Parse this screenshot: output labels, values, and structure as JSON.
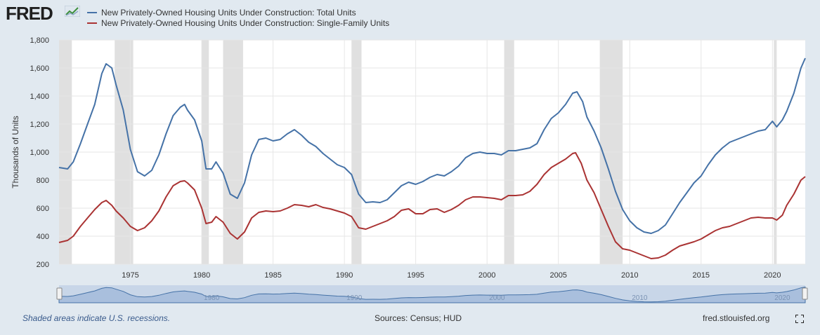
{
  "logo": {
    "text": "FRED",
    "icon": "fred-trend-logo-icon"
  },
  "footer": {
    "note": "Shaded areas indicate U.S. recessions.",
    "source": "Sources: Census; HUD",
    "site": "fred.stlouisfed.org",
    "fullscreen_icon": "fullscreen-icon"
  },
  "colors": {
    "total": "#4572a7",
    "single": "#aa3333",
    "recession": "#e0e0e0",
    "plot_bg": "#ffffff",
    "page_bg": "#e1e9f0",
    "navigator_fill": "#a9bfdd",
    "navigator_line": "#4572a7"
  },
  "chart_data": {
    "type": "line",
    "title": "",
    "xlabel": "",
    "ylabel": "Thousands of Units",
    "xlim": [
      1970.0,
      2022.3
    ],
    "ylim": [
      200,
      1800
    ],
    "yticks": [
      200,
      400,
      600,
      800,
      1000,
      1200,
      1400,
      1600,
      1800
    ],
    "ytick_labels": [
      "200",
      "400",
      "600",
      "800",
      "1,000",
      "1,200",
      "1,400",
      "1,600",
      "1,800"
    ],
    "xticks": [
      1975,
      1980,
      1985,
      1990,
      1995,
      2000,
      2005,
      2010,
      2015,
      2020
    ],
    "xtick_labels": [
      "1975",
      "1980",
      "1985",
      "1990",
      "1995",
      "2000",
      "2005",
      "2010",
      "2015",
      "2020"
    ],
    "grid": true,
    "legend_position": "top-left",
    "navigator_labels": [
      "1980",
      "1990",
      "2000",
      "2010",
      "2020"
    ],
    "recessions": [
      [
        1970.0,
        1970.9
      ],
      [
        1973.9,
        1975.2
      ],
      [
        1980.0,
        1980.5
      ],
      [
        1981.5,
        1982.9
      ],
      [
        1990.5,
        1991.2
      ],
      [
        2001.2,
        2001.9
      ],
      [
        2007.9,
        2009.5
      ],
      [
        2020.1,
        2020.3
      ]
    ],
    "series": [
      {
        "name": "New Privately-Owned Housing Units Under Construction: Total Units",
        "points": [
          [
            1970.0,
            890
          ],
          [
            1970.6,
            880
          ],
          [
            1971.0,
            930
          ],
          [
            1971.5,
            1060
          ],
          [
            1972.0,
            1200
          ],
          [
            1972.5,
            1340
          ],
          [
            1973.0,
            1560
          ],
          [
            1973.3,
            1630
          ],
          [
            1973.7,
            1600
          ],
          [
            1974.0,
            1480
          ],
          [
            1974.5,
            1300
          ],
          [
            1975.0,
            1020
          ],
          [
            1975.5,
            860
          ],
          [
            1976.0,
            830
          ],
          [
            1976.5,
            870
          ],
          [
            1977.0,
            980
          ],
          [
            1977.5,
            1130
          ],
          [
            1978.0,
            1260
          ],
          [
            1978.5,
            1320
          ],
          [
            1978.8,
            1340
          ],
          [
            1979.0,
            1300
          ],
          [
            1979.5,
            1230
          ],
          [
            1980.0,
            1080
          ],
          [
            1980.3,
            880
          ],
          [
            1980.7,
            880
          ],
          [
            1981.0,
            930
          ],
          [
            1981.5,
            850
          ],
          [
            1982.0,
            700
          ],
          [
            1982.5,
            670
          ],
          [
            1983.0,
            780
          ],
          [
            1983.5,
            980
          ],
          [
            1984.0,
            1090
          ],
          [
            1984.5,
            1100
          ],
          [
            1985.0,
            1080
          ],
          [
            1985.5,
            1090
          ],
          [
            1986.0,
            1130
          ],
          [
            1986.5,
            1160
          ],
          [
            1987.0,
            1120
          ],
          [
            1987.5,
            1070
          ],
          [
            1988.0,
            1040
          ],
          [
            1988.5,
            990
          ],
          [
            1989.0,
            950
          ],
          [
            1989.5,
            910
          ],
          [
            1990.0,
            890
          ],
          [
            1990.5,
            840
          ],
          [
            1991.0,
            700
          ],
          [
            1991.5,
            640
          ],
          [
            1992.0,
            645
          ],
          [
            1992.5,
            640
          ],
          [
            1993.0,
            660
          ],
          [
            1993.5,
            710
          ],
          [
            1994.0,
            760
          ],
          [
            1994.5,
            785
          ],
          [
            1995.0,
            770
          ],
          [
            1995.5,
            790
          ],
          [
            1996.0,
            820
          ],
          [
            1996.5,
            840
          ],
          [
            1997.0,
            830
          ],
          [
            1997.5,
            860
          ],
          [
            1998.0,
            900
          ],
          [
            1998.5,
            960
          ],
          [
            1999.0,
            990
          ],
          [
            1999.5,
            1000
          ],
          [
            2000.0,
            990
          ],
          [
            2000.5,
            990
          ],
          [
            2001.0,
            980
          ],
          [
            2001.5,
            1010
          ],
          [
            2002.0,
            1010
          ],
          [
            2002.5,
            1020
          ],
          [
            2003.0,
            1030
          ],
          [
            2003.5,
            1060
          ],
          [
            2004.0,
            1160
          ],
          [
            2004.5,
            1240
          ],
          [
            2005.0,
            1280
          ],
          [
            2005.5,
            1340
          ],
          [
            2006.0,
            1420
          ],
          [
            2006.3,
            1430
          ],
          [
            2006.7,
            1360
          ],
          [
            2007.0,
            1250
          ],
          [
            2007.5,
            1150
          ],
          [
            2008.0,
            1030
          ],
          [
            2008.5,
            880
          ],
          [
            2009.0,
            720
          ],
          [
            2009.5,
            590
          ],
          [
            2010.0,
            510
          ],
          [
            2010.5,
            460
          ],
          [
            2011.0,
            430
          ],
          [
            2011.5,
            420
          ],
          [
            2012.0,
            440
          ],
          [
            2012.5,
            480
          ],
          [
            2013.0,
            560
          ],
          [
            2013.5,
            640
          ],
          [
            2014.0,
            710
          ],
          [
            2014.5,
            780
          ],
          [
            2015.0,
            830
          ],
          [
            2015.5,
            910
          ],
          [
            2016.0,
            980
          ],
          [
            2016.5,
            1030
          ],
          [
            2017.0,
            1070
          ],
          [
            2017.5,
            1090
          ],
          [
            2018.0,
            1110
          ],
          [
            2018.5,
            1130
          ],
          [
            2019.0,
            1150
          ],
          [
            2019.5,
            1160
          ],
          [
            2020.0,
            1220
          ],
          [
            2020.3,
            1180
          ],
          [
            2020.7,
            1230
          ],
          [
            2021.0,
            1290
          ],
          [
            2021.5,
            1420
          ],
          [
            2022.0,
            1600
          ],
          [
            2022.3,
            1670
          ]
        ]
      },
      {
        "name": "New Privately-Owned Housing Units Under Construction: Single-Family Units",
        "points": [
          [
            1970.0,
            355
          ],
          [
            1970.6,
            370
          ],
          [
            1971.0,
            400
          ],
          [
            1971.5,
            470
          ],
          [
            1972.0,
            530
          ],
          [
            1972.5,
            590
          ],
          [
            1973.0,
            640
          ],
          [
            1973.3,
            655
          ],
          [
            1973.7,
            620
          ],
          [
            1974.0,
            580
          ],
          [
            1974.5,
            530
          ],
          [
            1975.0,
            470
          ],
          [
            1975.5,
            440
          ],
          [
            1976.0,
            460
          ],
          [
            1976.5,
            510
          ],
          [
            1977.0,
            580
          ],
          [
            1977.5,
            680
          ],
          [
            1978.0,
            760
          ],
          [
            1978.5,
            790
          ],
          [
            1978.8,
            795
          ],
          [
            1979.0,
            780
          ],
          [
            1979.5,
            730
          ],
          [
            1980.0,
            600
          ],
          [
            1980.3,
            490
          ],
          [
            1980.7,
            500
          ],
          [
            1981.0,
            540
          ],
          [
            1981.5,
            500
          ],
          [
            1982.0,
            420
          ],
          [
            1982.5,
            380
          ],
          [
            1983.0,
            430
          ],
          [
            1983.5,
            530
          ],
          [
            1984.0,
            570
          ],
          [
            1984.5,
            580
          ],
          [
            1985.0,
            575
          ],
          [
            1985.5,
            580
          ],
          [
            1986.0,
            600
          ],
          [
            1986.5,
            625
          ],
          [
            1987.0,
            620
          ],
          [
            1987.5,
            610
          ],
          [
            1988.0,
            625
          ],
          [
            1988.5,
            605
          ],
          [
            1989.0,
            595
          ],
          [
            1989.5,
            580
          ],
          [
            1990.0,
            565
          ],
          [
            1990.5,
            540
          ],
          [
            1991.0,
            460
          ],
          [
            1991.5,
            450
          ],
          [
            1992.0,
            470
          ],
          [
            1992.5,
            490
          ],
          [
            1993.0,
            510
          ],
          [
            1993.5,
            540
          ],
          [
            1994.0,
            585
          ],
          [
            1994.5,
            595
          ],
          [
            1995.0,
            560
          ],
          [
            1995.5,
            560
          ],
          [
            1996.0,
            590
          ],
          [
            1996.5,
            595
          ],
          [
            1997.0,
            570
          ],
          [
            1997.5,
            590
          ],
          [
            1998.0,
            620
          ],
          [
            1998.5,
            660
          ],
          [
            1999.0,
            680
          ],
          [
            1999.5,
            680
          ],
          [
            2000.0,
            675
          ],
          [
            2000.5,
            670
          ],
          [
            2001.0,
            660
          ],
          [
            2001.5,
            690
          ],
          [
            2002.0,
            690
          ],
          [
            2002.5,
            695
          ],
          [
            2003.0,
            720
          ],
          [
            2003.5,
            770
          ],
          [
            2004.0,
            840
          ],
          [
            2004.5,
            890
          ],
          [
            2005.0,
            920
          ],
          [
            2005.5,
            950
          ],
          [
            2006.0,
            990
          ],
          [
            2006.2,
            995
          ],
          [
            2006.6,
            920
          ],
          [
            2007.0,
            800
          ],
          [
            2007.5,
            710
          ],
          [
            2008.0,
            590
          ],
          [
            2008.5,
            470
          ],
          [
            2009.0,
            360
          ],
          [
            2009.5,
            310
          ],
          [
            2010.0,
            300
          ],
          [
            2010.5,
            280
          ],
          [
            2011.0,
            260
          ],
          [
            2011.5,
            240
          ],
          [
            2012.0,
            245
          ],
          [
            2012.5,
            265
          ],
          [
            2013.0,
            300
          ],
          [
            2013.5,
            330
          ],
          [
            2014.0,
            345
          ],
          [
            2014.5,
            360
          ],
          [
            2015.0,
            380
          ],
          [
            2015.5,
            410
          ],
          [
            2016.0,
            440
          ],
          [
            2016.5,
            460
          ],
          [
            2017.0,
            470
          ],
          [
            2017.5,
            490
          ],
          [
            2018.0,
            510
          ],
          [
            2018.5,
            530
          ],
          [
            2019.0,
            535
          ],
          [
            2019.5,
            530
          ],
          [
            2020.0,
            530
          ],
          [
            2020.3,
            515
          ],
          [
            2020.7,
            550
          ],
          [
            2021.0,
            620
          ],
          [
            2021.5,
            700
          ],
          [
            2022.0,
            800
          ],
          [
            2022.3,
            825
          ]
        ]
      }
    ]
  }
}
